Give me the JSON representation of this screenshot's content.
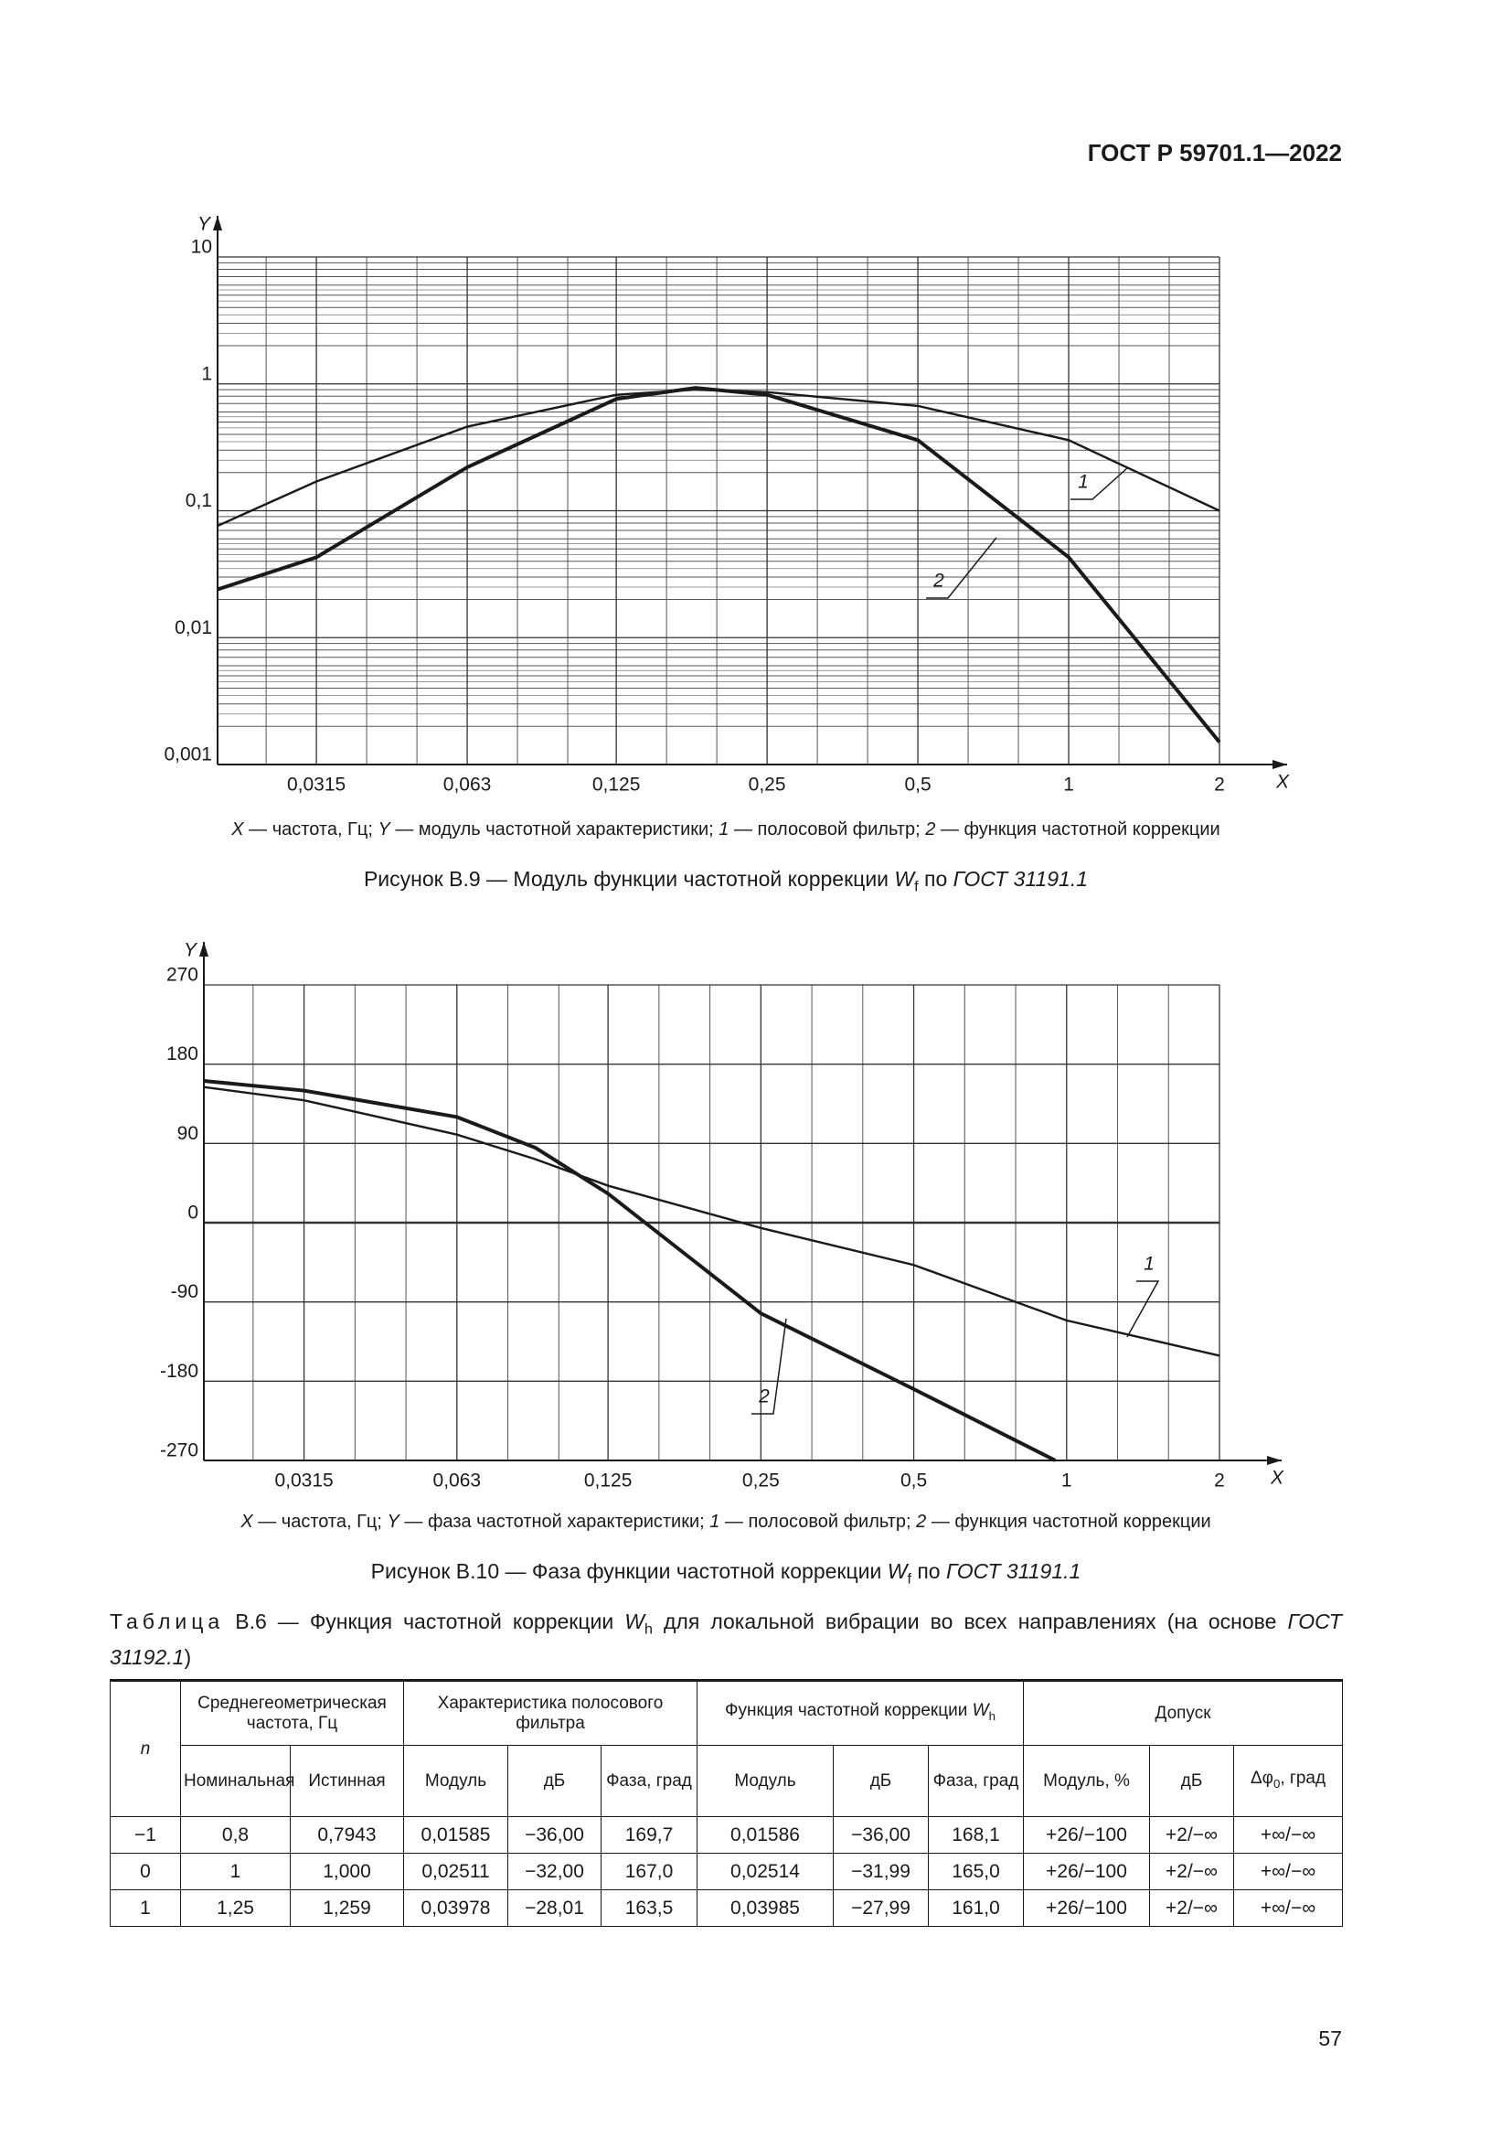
{
  "header": {
    "title": "ГОСТ Р 59701.1—2022"
  },
  "chart_data": [
    {
      "type": "line",
      "log_x": true,
      "log_y": true,
      "minor_grid": true,
      "x_label": "X",
      "y_label": "Y",
      "xlim": [
        0.02,
        2
      ],
      "ylim": [
        0.001,
        10
      ],
      "xticks": [
        {
          "value": 0.0315,
          "label": "0,0315"
        },
        {
          "value": 0.063,
          "label": "0,063"
        },
        {
          "value": 0.125,
          "label": "0,125"
        },
        {
          "value": 0.25,
          "label": "0,25"
        },
        {
          "value": 0.5,
          "label": "0,5"
        },
        1,
        2
      ],
      "yticks": [
        {
          "value": 0.001,
          "label": "0,001"
        },
        {
          "value": 0.01,
          "label": "0,01"
        },
        {
          "value": 0.1,
          "label": "0,1"
        },
        1,
        10
      ],
      "series": [
        {
          "name": "1",
          "color": "#1a1a1a",
          "x": [
            0.02,
            0.0315,
            0.063,
            0.125,
            0.18,
            0.25,
            0.5,
            1,
            2
          ],
          "values": [
            0.076,
            0.17,
            0.46,
            0.82,
            0.9,
            0.86,
            0.67,
            0.36,
            0.1
          ]
        },
        {
          "name": "2",
          "color": "#1a1a1a",
          "x": [
            0.02,
            0.0315,
            0.063,
            0.125,
            0.18,
            0.25,
            0.5,
            1,
            2
          ],
          "values": [
            0.024,
            0.043,
            0.22,
            0.76,
            0.93,
            0.82,
            0.36,
            0.043,
            0.0015
          ]
        }
      ],
      "key": [
        "X",
        " — частота, Гц; ",
        "Y",
        " — модуль частотной характеристики; ",
        "1",
        " — полосовой фильтр; ",
        "2",
        " — функция частотной коррекции"
      ],
      "caption": [
        "Рисунок В.9 — Модуль функции частотной коррекции ",
        "W",
        "f",
        " по ",
        "ГОСТ 31191.1"
      ]
    },
    {
      "type": "line",
      "log_x": true,
      "log_y": false,
      "minor_grid": true,
      "zero_line": true,
      "x_label": "X",
      "y_label": "Y",
      "xlim": [
        0.02,
        2
      ],
      "ylim": [
        -270,
        270
      ],
      "xticks": [
        {
          "value": 0.0315,
          "label": "0,0315"
        },
        {
          "value": 0.063,
          "label": "0,063"
        },
        {
          "value": 0.125,
          "label": "0,125"
        },
        {
          "value": 0.25,
          "label": "0,25"
        },
        {
          "value": 0.5,
          "label": "0,5"
        },
        1,
        2
      ],
      "yticks": [
        270,
        180,
        90,
        0,
        -90,
        -180,
        -270
      ],
      "series": [
        {
          "name": "1",
          "color": "#1a1a1a",
          "x": [
            0.02,
            0.0315,
            0.063,
            0.09,
            0.125,
            0.25,
            0.5,
            1,
            2
          ],
          "values": [
            154,
            139,
            100,
            72,
            42,
            -6,
            -48,
            -111,
            -151
          ]
        },
        {
          "name": "2",
          "color": "#1a1a1a",
          "x": [
            0.02,
            0.0315,
            0.063,
            0.09,
            0.125,
            0.25,
            0.5,
            0.95
          ],
          "values": [
            161,
            150,
            120,
            85,
            33,
            -103,
            -189,
            -270
          ]
        }
      ],
      "key": [
        "X",
        " — частота, Гц; ",
        "Y",
        " — фаза частотной характеристики; ",
        "1",
        " — полосовой фильтр; ",
        "2",
        " — функция частотной коррекции"
      ],
      "caption": [
        "Рисунок В.10 — Фаза функции частотной коррекции ",
        "W",
        "f",
        " по ",
        "ГОСТ 31191.1"
      ]
    }
  ],
  "table": {
    "caption": [
      "Таблица",
      " В.6 — Функция частотной коррекции ",
      "W",
      "h",
      " для локальной вибрации во всех направлениях (на основе ",
      "ГОСТ 31192.1",
      ")"
    ],
    "head1": [
      "n",
      "Среднегеометрическая частота, Гц",
      "Характеристика полосового фильтра",
      [
        "Функция частотной коррекции ",
        "W",
        "h"
      ],
      "Допуск"
    ],
    "head2": [
      "Номинальная",
      "Истинная",
      "Модуль",
      "дБ",
      "Фаза, град",
      "Модуль",
      "дБ",
      "Фаза, град",
      "Модуль, %",
      "дБ",
      [
        "Δφ",
        "0",
        ", град"
      ]
    ],
    "rows": [
      [
        "−1",
        "0,8",
        "0,7943",
        "0,01585",
        "−36,00",
        "169,7",
        "0,01586",
        "−36,00",
        "168,1",
        "+26/−100",
        "+2/−∞",
        "+∞/−∞"
      ],
      [
        "0",
        "1",
        "1,000",
        "0,02511",
        "−32,00",
        "167,0",
        "0,02514",
        "−31,99",
        "165,0",
        "+26/−100",
        "+2/−∞",
        "+∞/−∞"
      ],
      [
        "1",
        "1,25",
        "1,259",
        "0,03978",
        "−28,01",
        "163,5",
        "0,03985",
        "−27,99",
        "161,0",
        "+26/−100",
        "+2/−∞",
        "+∞/−∞"
      ]
    ]
  },
  "page_number": "57"
}
